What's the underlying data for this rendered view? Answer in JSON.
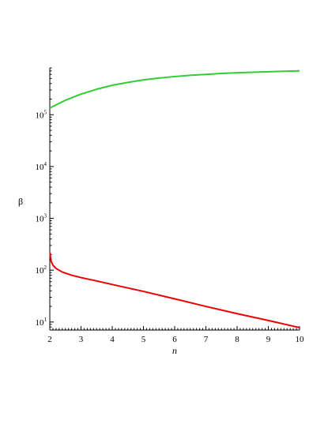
{
  "chart_data": {
    "type": "line",
    "title": "",
    "xlabel": "n",
    "ylabel": "β",
    "xlim": [
      2,
      10
    ],
    "ylim": [
      7,
      800000
    ],
    "y_scale": "log",
    "grid": false,
    "x_ticks": [
      "2",
      "3",
      "4",
      "5",
      "6",
      "7",
      "8",
      "9",
      "10"
    ],
    "y_ticks": [
      {
        "base": "10",
        "exp": "1",
        "value": 10
      },
      {
        "base": "10",
        "exp": "2",
        "value": 100
      },
      {
        "base": "10",
        "exp": "3",
        "value": 1000
      },
      {
        "base": "10",
        "exp": "4",
        "value": 10000
      },
      {
        "base": "10",
        "exp": "5",
        "value": 100000
      }
    ],
    "series": [
      {
        "color": "#33cc33",
        "x": [
          2.0,
          2.5,
          3.0,
          3.5,
          4.0,
          4.5,
          5.0,
          5.5,
          6.0,
          6.5,
          7.0,
          7.5,
          8.0,
          8.5,
          9.0,
          9.5,
          10.0
        ],
        "y": [
          135000,
          190000,
          250000,
          310000,
          370000,
          420000,
          470000,
          510000,
          545000,
          575000,
          600000,
          625000,
          645000,
          660000,
          675000,
          690000,
          700000
        ]
      },
      {
        "color": "#ee0000",
        "x": [
          2.01,
          2.02,
          2.05,
          2.1,
          2.2,
          2.4,
          2.7,
          3.0,
          3.5,
          4.0,
          5.0,
          6.0,
          7.0,
          8.0,
          9.0,
          10.0
        ],
        "y": [
          220,
          180,
          145,
          125,
          108,
          92,
          80,
          72,
          62,
          53,
          39,
          28,
          20,
          14.5,
          10.7,
          7.8
        ]
      }
    ]
  }
}
